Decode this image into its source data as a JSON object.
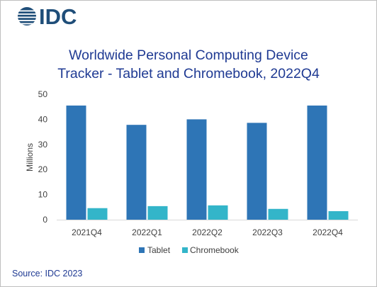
{
  "logo": {
    "text": "IDC"
  },
  "source": "Source: IDC 2023",
  "colors": {
    "tablet": "#2e75b6",
    "chromebook": "#33b5c9",
    "title": "#1f3a93",
    "logo": "#1f4e79"
  },
  "chart_data": {
    "type": "bar",
    "title_lines": [
      "Worldwide Personal Computing Device",
      "Tracker - Tablet and Chromebook, 2022Q4"
    ],
    "categories": [
      "2021Q4",
      "2022Q1",
      "2022Q2",
      "2022Q3",
      "2022Q4"
    ],
    "series": [
      {
        "name": "Tablet",
        "values": [
          45.5,
          37.8,
          40.0,
          38.6,
          45.5
        ]
      },
      {
        "name": "Chromebook",
        "values": [
          4.6,
          5.4,
          5.7,
          4.3,
          3.4
        ]
      }
    ],
    "ylabel": "Millions",
    "ylim": [
      0,
      50
    ],
    "yticks": [
      0,
      10,
      20,
      30,
      40,
      50
    ],
    "grid": false,
    "legend_position": "bottom"
  }
}
